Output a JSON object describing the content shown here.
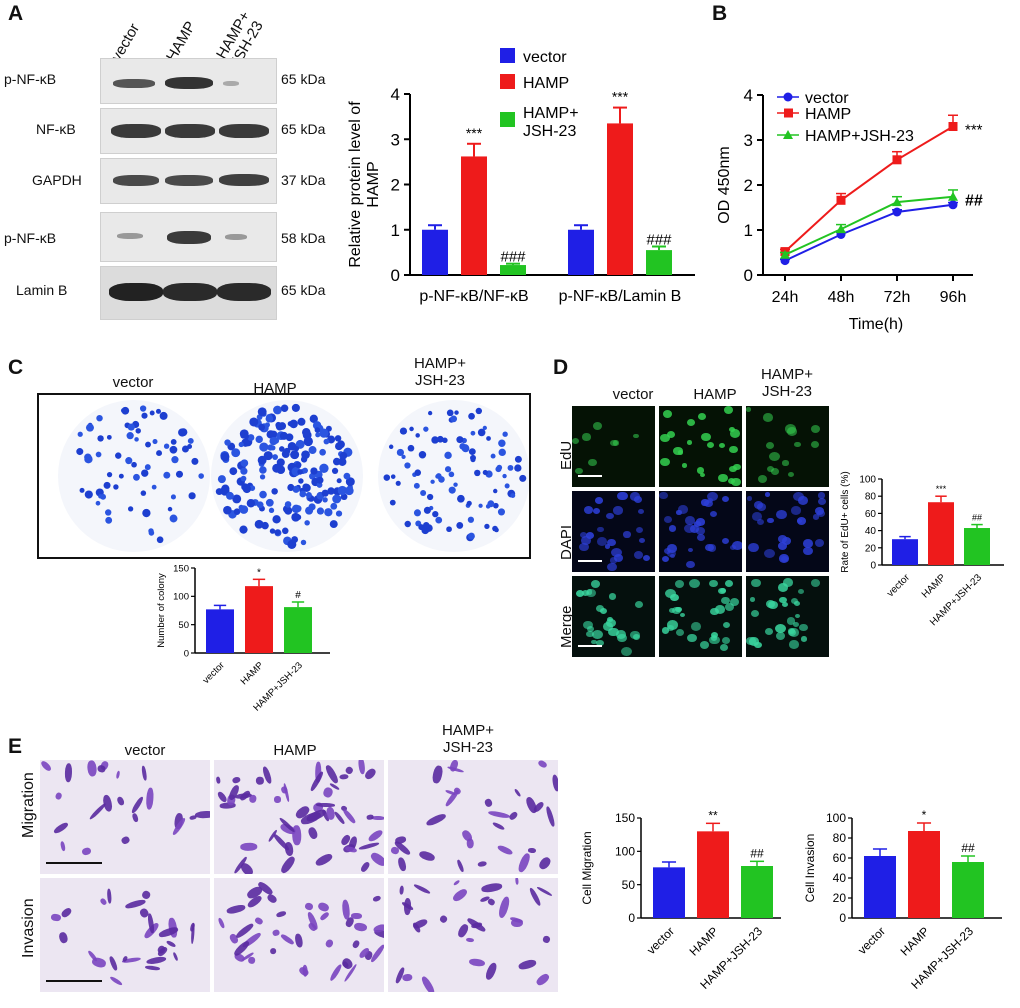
{
  "panels": {
    "A": "A",
    "B": "B",
    "C": "C",
    "D": "D",
    "E": "E"
  },
  "westernBlot": {
    "lanes": [
      "vector",
      "HAMP",
      "HAMP+\nJSH-23"
    ],
    "rows": [
      {
        "label": "p-NF-κB",
        "kda": "65 kDa"
      },
      {
        "label": "NF-κB",
        "kda": "65 kDa"
      },
      {
        "label": "GAPDH",
        "kda": "37 kDa"
      },
      {
        "label": "p-NF-κB",
        "kda": "58 kDa"
      },
      {
        "label": "Lamin B",
        "kda": "65 kDa"
      }
    ]
  },
  "colors": {
    "vector": "#1f1fe6",
    "hamp": "#ee1b1b",
    "jsh": "#22c422"
  },
  "legendA": [
    "vector",
    "HAMP",
    "HAMP+\nJSH-23"
  ],
  "legendB": [
    "vector",
    "HAMP",
    "HAMP+JSH-23"
  ],
  "colonyHeaders": [
    "vector",
    "HAMP",
    "HAMP+\nJSH-23"
  ],
  "edUHeaders": [
    "vector",
    "HAMP",
    "HAMP+\nJSH-23"
  ],
  "edURows": [
    "EdU",
    "DAPI",
    "Merge"
  ],
  "transwellHeaders": [
    "vector",
    "HAMP",
    "HAMP+\nJSH-23"
  ],
  "transwellRows": [
    "Migration",
    "Invasion"
  ],
  "chart_data": [
    {
      "id": "A-bar",
      "type": "bar",
      "categories": [
        "p-NF-κB/NF-κB",
        "p-NF-κB/Lamin B"
      ],
      "series": [
        {
          "name": "vector",
          "values": [
            1.0,
            1.0
          ],
          "err": [
            0.1,
            0.1
          ]
        },
        {
          "name": "HAMP",
          "values": [
            2.62,
            3.35
          ],
          "err": [
            0.28,
            0.35
          ]
        },
        {
          "name": "HAMP+JSH-23",
          "values": [
            0.22,
            0.55
          ],
          "err": [
            0.03,
            0.08
          ]
        }
      ],
      "ylabel": "Relative protein level of\nHAMP",
      "ylim": [
        0,
        4
      ],
      "yticks": [
        0,
        1,
        2,
        3,
        4
      ],
      "annotations": [
        [
          "",
          "***",
          "###"
        ],
        [
          "",
          "***",
          "###"
        ]
      ]
    },
    {
      "id": "B-line",
      "type": "line",
      "x": [
        "24h",
        "48h",
        "72h",
        "96h"
      ],
      "series": [
        {
          "name": "vector",
          "values": [
            0.32,
            0.9,
            1.4,
            1.56
          ],
          "err": [
            0.03,
            0.05,
            0.05,
            0.05
          ]
        },
        {
          "name": "HAMP",
          "values": [
            0.52,
            1.66,
            2.56,
            3.3
          ],
          "err": [
            0.05,
            0.15,
            0.18,
            0.25
          ]
        },
        {
          "name": "HAMP+JSH-23",
          "values": [
            0.45,
            1.02,
            1.62,
            1.74
          ],
          "err": [
            0.05,
            0.1,
            0.12,
            0.15
          ]
        }
      ],
      "xlabel": "Time(h)",
      "ylabel": "OD 450nm",
      "ylim": [
        0,
        4
      ],
      "yticks": [
        0,
        1,
        2,
        3,
        4
      ],
      "annotations": [
        "",
        "***",
        "##"
      ]
    },
    {
      "id": "C-bar",
      "type": "bar",
      "categories": [
        "vector",
        "HAMP",
        "HAMP+JSH-23"
      ],
      "values": [
        77,
        118,
        81
      ],
      "err": [
        7,
        12,
        9
      ],
      "ylabel": "Number of colony",
      "ylim": [
        0,
        150
      ],
      "yticks": [
        0,
        50,
        100,
        150
      ],
      "annotations": [
        "",
        "*",
        "#"
      ]
    },
    {
      "id": "D-bar",
      "type": "bar",
      "categories": [
        "vector",
        "HAMP",
        "HAMP+JSH-23"
      ],
      "values": [
        30,
        73,
        43
      ],
      "err": [
        3,
        7,
        4
      ],
      "ylabel": "Rate of EdU+ cells (%)",
      "ylim": [
        0,
        100
      ],
      "yticks": [
        0,
        20,
        40,
        60,
        80,
        100
      ],
      "annotations": [
        "",
        "***",
        "##"
      ]
    },
    {
      "id": "E-mig",
      "type": "bar",
      "categories": [
        "vector",
        "HAMP",
        "HAMP+JSH-23"
      ],
      "values": [
        76,
        130,
        78
      ],
      "err": [
        8,
        12,
        7
      ],
      "ylabel": "Cell Migration",
      "ylim": [
        0,
        150
      ],
      "yticks": [
        0,
        50,
        100,
        150
      ],
      "annotations": [
        "",
        "**",
        "##"
      ]
    },
    {
      "id": "E-inv",
      "type": "bar",
      "categories": [
        "vector",
        "HAMP",
        "HAMP+JSH-23"
      ],
      "values": [
        62,
        87,
        56
      ],
      "err": [
        7,
        8,
        6
      ],
      "ylabel": "Cell Invasion",
      "ylim": [
        0,
        100
      ],
      "yticks": [
        0,
        20,
        40,
        60,
        80,
        100
      ],
      "annotations": [
        "",
        "*",
        "##"
      ]
    }
  ]
}
